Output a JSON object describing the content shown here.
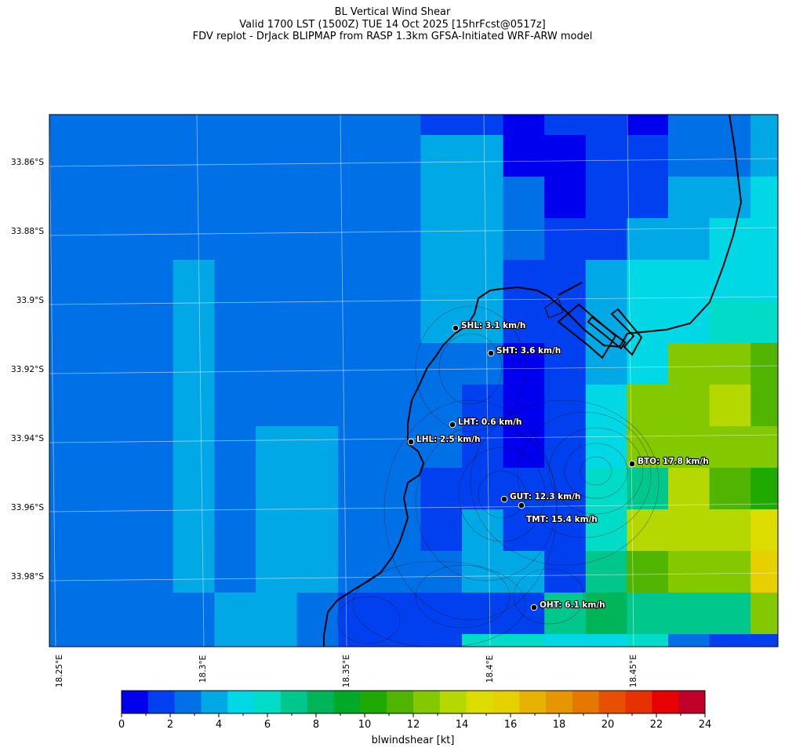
{
  "title": {
    "line1": "BL Vertical Wind Shear",
    "line2": "Valid 1700 LST (1500Z) TUE 14 Oct 2025 [15hrFcst@0517z]",
    "line3": "FDV replot - DrJack BLIPMAP from RASP 1.3km GFSA-Initiated WRF-ARW model"
  },
  "map": {
    "lat_labels": [
      "33.86°S",
      "33.88°S",
      "33.9°S",
      "33.92°S",
      "33.94°S",
      "33.96°S",
      "33.98°S"
    ],
    "lon_labels": [
      "18.25°E",
      "18.3°E",
      "18.35°E",
      "18.4°E",
      "18.45°E"
    ],
    "stations": [
      {
        "code": "SHL",
        "label": "SHL: 3.1 km/h",
        "value_kmh": 3.1
      },
      {
        "code": "SHT",
        "label": "SHT: 3.6 km/h",
        "value_kmh": 3.6
      },
      {
        "code": "LHT",
        "label": "LHT: 0.6 km/h",
        "value_kmh": 0.6
      },
      {
        "code": "LHL",
        "label": "LHL: 2.5 km/h",
        "value_kmh": 2.5
      },
      {
        "code": "BTO",
        "label": "BTO: 17.8 km/h",
        "value_kmh": 17.8
      },
      {
        "code": "GUT",
        "label": "GUT: 12.3 km/h",
        "value_kmh": 12.3
      },
      {
        "code": "TMT",
        "label": "TMT: 15.4 km/h",
        "value_kmh": 15.4
      },
      {
        "code": "OHT",
        "label": "OHT: 6.1 km/h",
        "value_kmh": 6.1
      }
    ]
  },
  "colorbar": {
    "label": "blwindshear [kt]",
    "ticks": [
      "0",
      "2",
      "4",
      "6",
      "8",
      "10",
      "12",
      "14",
      "16",
      "18",
      "20",
      "22",
      "24"
    ],
    "colors": [
      "#0000ee",
      "#0040ee",
      "#0070e6",
      "#00a8e6",
      "#00d8e6",
      "#00dcc8",
      "#00c88c",
      "#00b45a",
      "#00aa28",
      "#1eaa00",
      "#50b400",
      "#84c800",
      "#b4d800",
      "#dcdc00",
      "#e6d000",
      "#e6b400",
      "#e69600",
      "#e67800",
      "#e65000",
      "#e63200",
      "#e60000",
      "#c00028"
    ]
  }
}
